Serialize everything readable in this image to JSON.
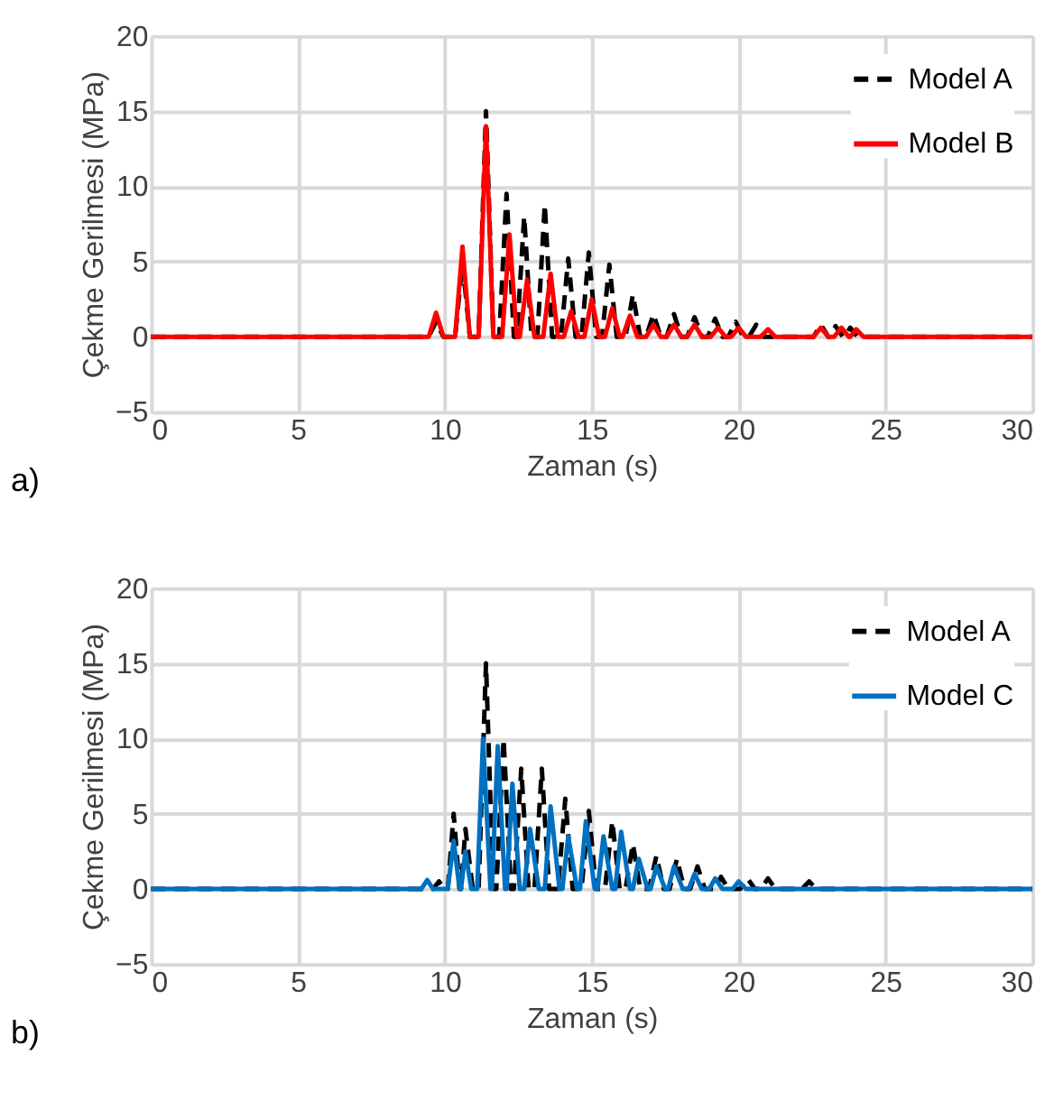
{
  "chart_data": [
    {
      "type": "line",
      "xlabel": "Zaman (s)",
      "ylabel": "Çekme Gerilmesi (MPa)",
      "annotations": [
        "a)"
      ],
      "xlim": [
        0,
        30
      ],
      "xticks": [
        0,
        5,
        10,
        15,
        20,
        25,
        30
      ],
      "ylim": [
        -5,
        20
      ],
      "yticks": [
        -5,
        0,
        5,
        10,
        15,
        20
      ],
      "grid": true,
      "legend": "top right",
      "marker": "none",
      "series": [
        {
          "name": "Model A",
          "color": "#000000",
          "line_style": "dashed",
          "x": [
            0,
            9.45,
            9.7,
            9.95,
            10.35,
            10.6,
            10.85,
            11.15,
            11.4,
            11.65,
            11.85,
            12.1,
            12.35,
            12.45,
            12.7,
            12.95,
            13.15,
            13.4,
            13.65,
            13.95,
            14.2,
            14.45,
            14.65,
            14.9,
            15.15,
            15.35,
            15.6,
            15.85,
            16.15,
            16.4,
            16.65,
            16.85,
            17.1,
            17.35,
            17.55,
            17.8,
            18.05,
            18.25,
            18.5,
            18.75,
            18.95,
            19.2,
            19.45,
            19.65,
            19.9,
            20.15,
            20.35,
            20.6,
            20.85,
            22.55,
            22.8,
            23.05,
            23.1,
            23.3,
            23.55,
            23.6,
            23.8,
            24.05,
            30
          ],
          "values": [
            0,
            0,
            1,
            0,
            0,
            5,
            0,
            0,
            15,
            0,
            0,
            9.5,
            0,
            0,
            8,
            0,
            0,
            8.8,
            0,
            0,
            5.2,
            0,
            0,
            5.6,
            0,
            0,
            4.8,
            0,
            0,
            2.8,
            0,
            0,
            1.5,
            0,
            0,
            1.5,
            0,
            0,
            1.3,
            0,
            0,
            1.2,
            0,
            0,
            1,
            0,
            0,
            0.8,
            0,
            0,
            0.8,
            0,
            0,
            0.7,
            0,
            0,
            0.6,
            0,
            0
          ]
        },
        {
          "name": "Model B",
          "color": "#ff0000",
          "line_style": "solid",
          "x": [
            0,
            9.45,
            9.7,
            9.95,
            10.35,
            10.6,
            10.85,
            11.15,
            11.4,
            11.65,
            11.95,
            12.2,
            12.45,
            12.55,
            12.8,
            13.05,
            13.35,
            13.6,
            13.85,
            14.05,
            14.3,
            14.55,
            14.75,
            15.0,
            15.25,
            15.45,
            15.7,
            15.95,
            16.05,
            16.3,
            16.55,
            16.85,
            17.1,
            17.35,
            17.55,
            17.8,
            18.05,
            18.25,
            18.5,
            18.75,
            19.05,
            19.3,
            19.55,
            19.75,
            20.0,
            20.25,
            20.75,
            21.0,
            21.25,
            22.55,
            22.8,
            23.05,
            23.25,
            23.5,
            23.75,
            23.8,
            24.0,
            24.25,
            30
          ],
          "values": [
            0,
            0,
            1.6,
            0,
            0,
            6,
            0,
            0,
            14,
            0,
            0,
            6.8,
            0,
            0,
            3.8,
            0,
            0,
            4.2,
            0,
            0,
            1.7,
            0,
            0,
            2.5,
            0,
            0,
            1.9,
            0,
            0,
            1.4,
            0,
            0,
            0.8,
            0,
            0,
            0.8,
            0,
            0,
            0.8,
            0,
            0,
            0.6,
            0,
            0,
            0.6,
            0,
            0,
            0.5,
            0,
            0,
            0.6,
            0,
            0,
            0.6,
            0,
            0,
            0.5,
            0,
            0
          ]
        }
      ]
    },
    {
      "type": "line",
      "xlabel": "Zaman (s)",
      "ylabel": "Çekme Gerilmesi (MPa)",
      "annotations": [
        "b)"
      ],
      "xlim": [
        0,
        30
      ],
      "xticks": [
        0,
        5,
        10,
        15,
        20,
        25,
        30
      ],
      "ylim": [
        -5,
        20
      ],
      "yticks": [
        -5,
        0,
        5,
        10,
        15,
        20
      ],
      "grid": true,
      "legend": "top right",
      "marker": "none",
      "series": [
        {
          "name": "Model A",
          "color": "#000000",
          "line_style": "dashed",
          "x": [
            0,
            9.6,
            9.8,
            10.0,
            10.1,
            10.3,
            10.5,
            10.55,
            10.7,
            10.95,
            11.15,
            11.4,
            11.65,
            11.75,
            12.0,
            12.25,
            12.35,
            12.6,
            12.85,
            13.05,
            13.3,
            13.55,
            13.85,
            14.1,
            14.35,
            14.65,
            14.9,
            15.15,
            15.45,
            15.7,
            15.95,
            16.15,
            16.4,
            16.65,
            16.95,
            17.2,
            17.45,
            17.65,
            17.9,
            18.15,
            18.35,
            18.6,
            18.85,
            19.15,
            19.4,
            19.65,
            20.05,
            20.3,
            20.55,
            20.75,
            21.0,
            21.25,
            22.15,
            22.4,
            22.65,
            30
          ],
          "values": [
            0,
            0,
            0.5,
            0,
            0,
            5,
            0,
            0,
            4,
            0,
            0,
            15,
            0,
            0,
            10,
            0,
            0,
            8,
            0,
            0,
            8,
            0,
            0,
            6,
            0,
            0,
            5.2,
            0,
            0,
            4.5,
            0,
            0,
            3,
            0,
            0,
            2.2,
            0,
            0,
            2,
            0,
            0,
            1.5,
            0,
            0,
            0.8,
            0,
            0,
            0.7,
            0,
            0,
            0.7,
            0,
            0,
            0.5,
            0,
            0
          ]
        },
        {
          "name": "Model C",
          "color": "#0070c0",
          "line_style": "solid",
          "x": [
            0,
            9.2,
            9.4,
            9.6,
            10.1,
            10.3,
            10.5,
            10.55,
            10.7,
            10.9,
            11.1,
            11.3,
            11.55,
            11.6,
            11.8,
            12.05,
            12.1,
            12.3,
            12.55,
            12.7,
            12.9,
            13.2,
            13.4,
            13.6,
            13.9,
            14.0,
            14.2,
            14.5,
            14.6,
            14.8,
            15.1,
            15.2,
            15.4,
            15.7,
            15.8,
            16.0,
            16.3,
            16.4,
            16.6,
            16.9,
            17.0,
            17.2,
            17.5,
            17.6,
            17.8,
            18.1,
            18.3,
            18.5,
            18.75,
            19.0,
            19.2,
            19.45,
            19.8,
            20.0,
            20.25,
            30
          ],
          "values": [
            0,
            0,
            0.6,
            0,
            0,
            3.2,
            0,
            0,
            2.5,
            0,
            0,
            10,
            0,
            0,
            9.5,
            0,
            0,
            7,
            0,
            0,
            4,
            0,
            0,
            5.5,
            0,
            0,
            3.5,
            0,
            0,
            4.5,
            0,
            0,
            3.5,
            0,
            0,
            3.8,
            0,
            0,
            2,
            0,
            0,
            1.5,
            0,
            0,
            1.5,
            0,
            0,
            1,
            0,
            0,
            0.7,
            0,
            0,
            0.5,
            0,
            0
          ]
        }
      ]
    }
  ]
}
